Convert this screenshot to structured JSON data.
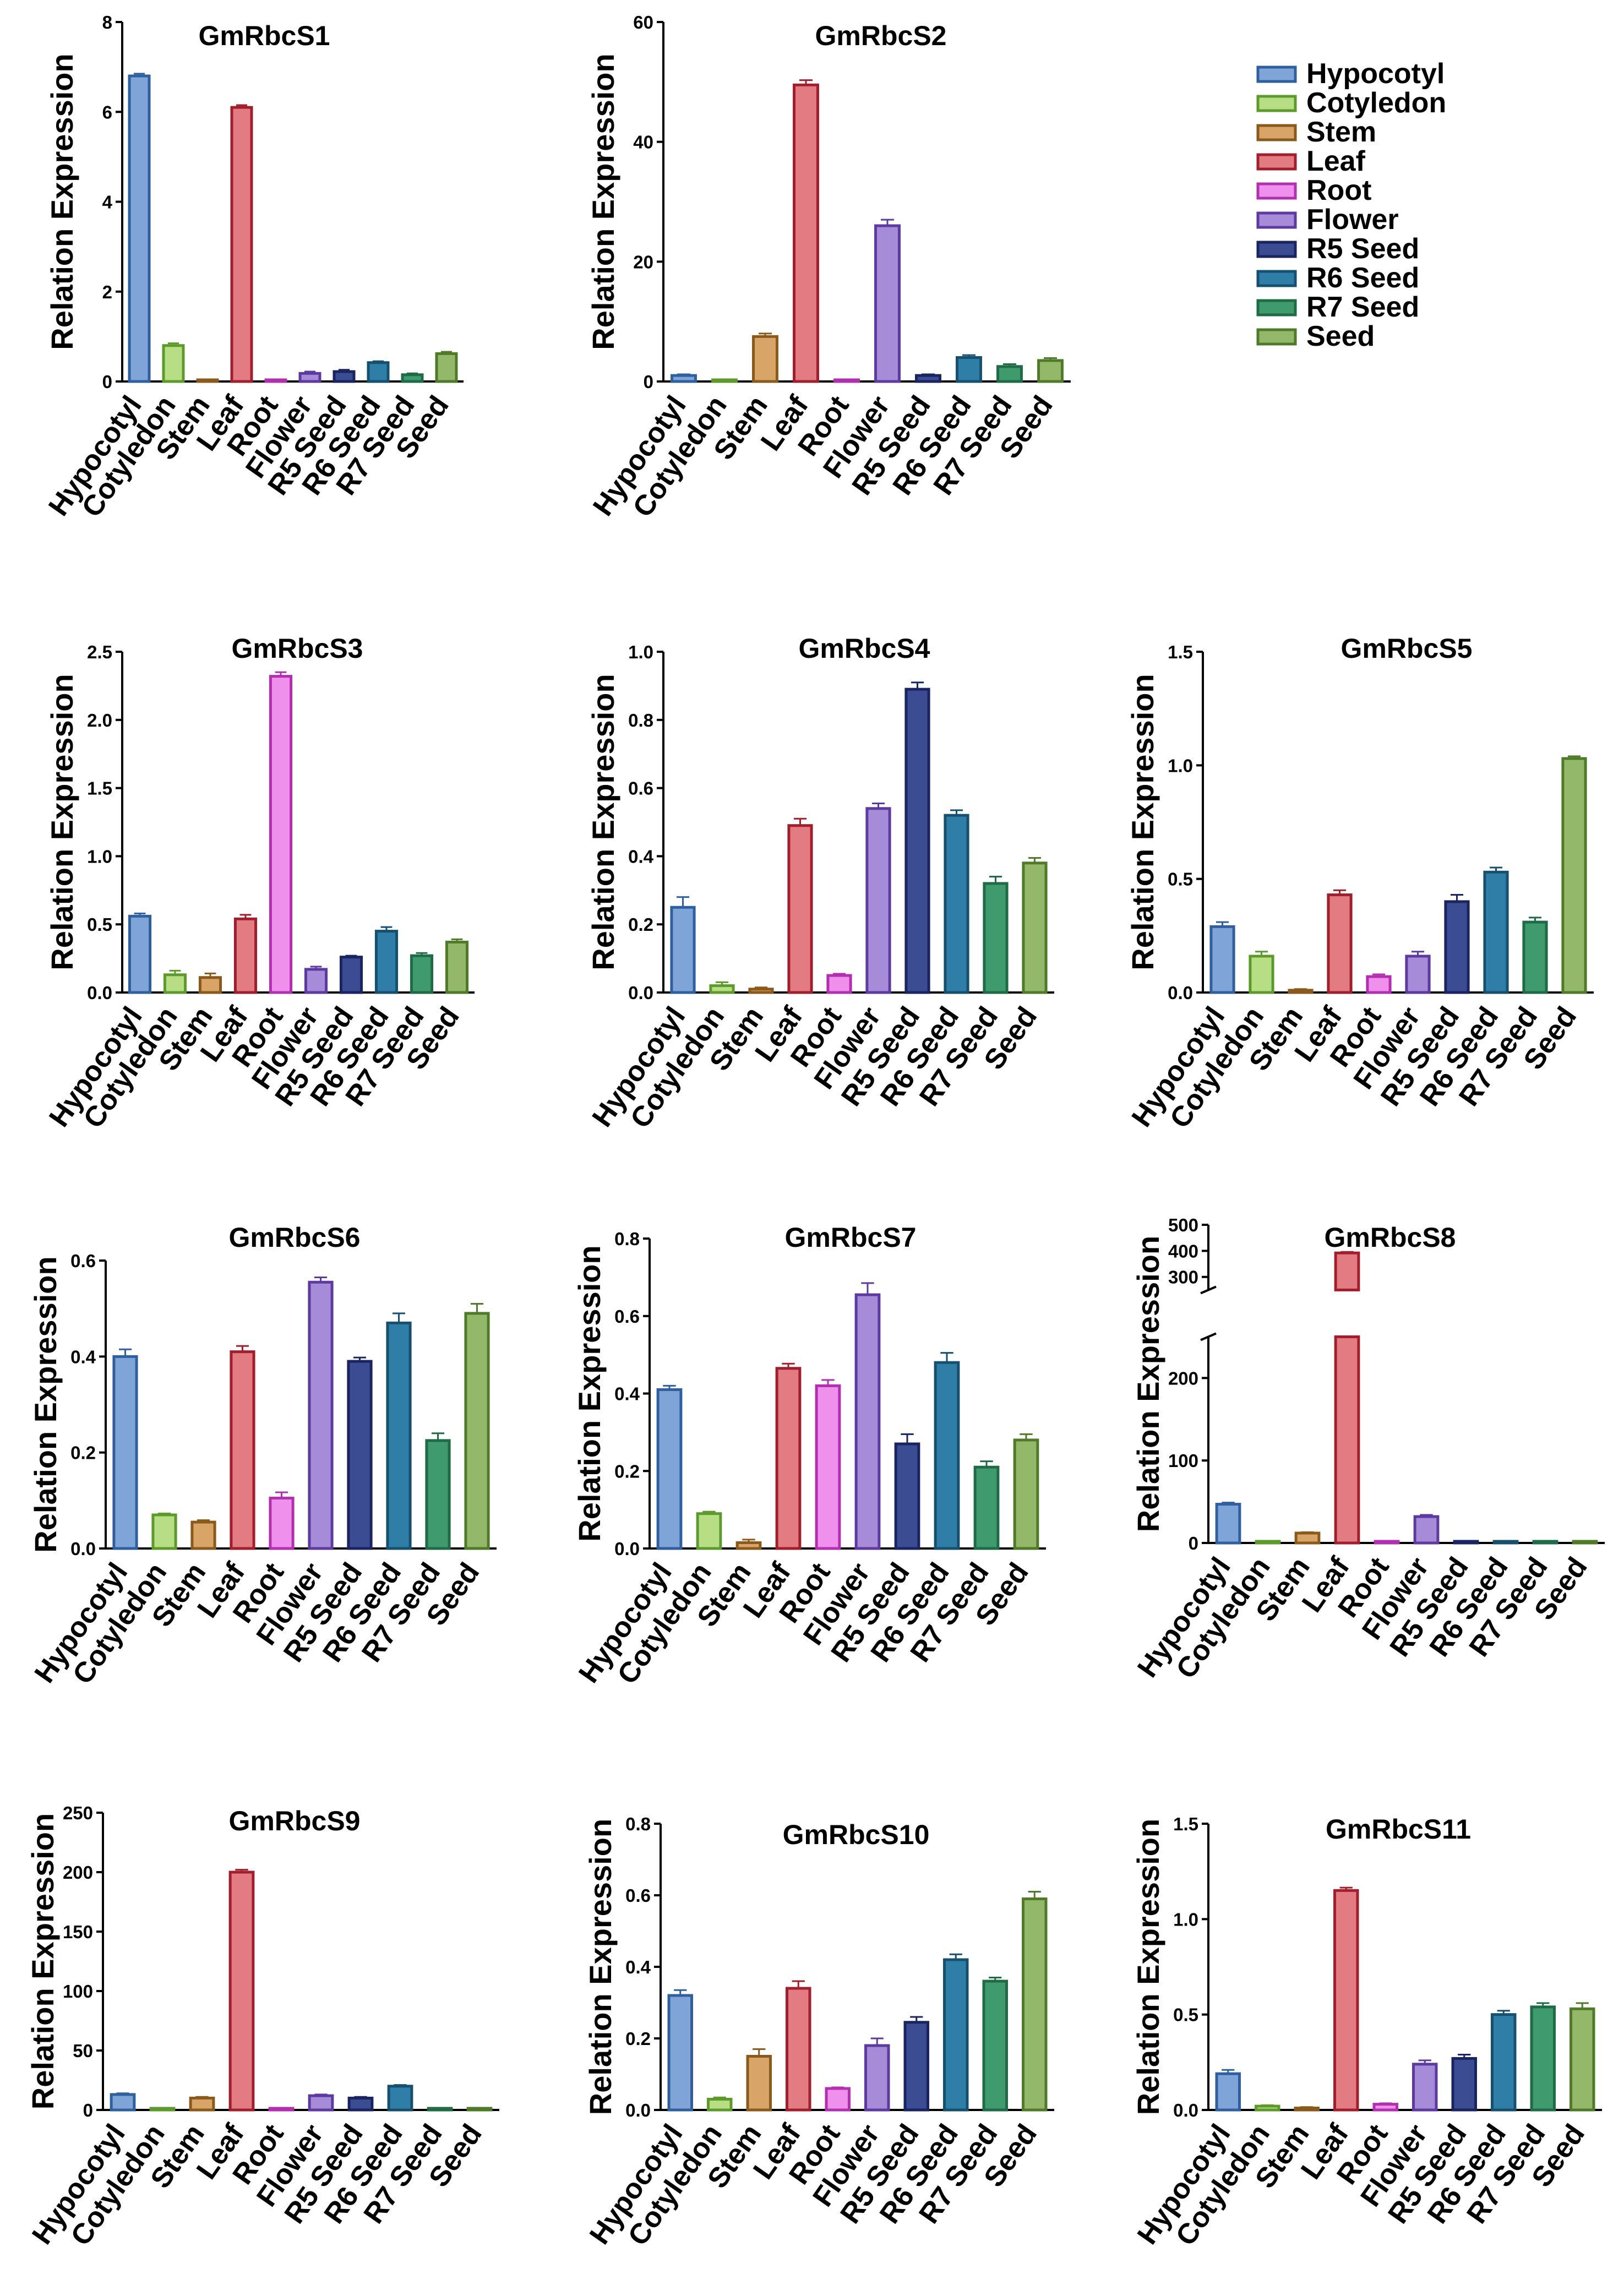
{
  "tissues": [
    "Hypocotyl",
    "Cotyledon",
    "Stem",
    "Leaf",
    "Root",
    "Flower",
    "R5 Seed",
    "R6 Seed",
    "R7 Seed",
    "Seed"
  ],
  "colors": [
    {
      "fill": "#7fa5d8",
      "stroke": "#2f5f9e"
    },
    {
      "fill": "#b8de85",
      "stroke": "#5c9a2c"
    },
    {
      "fill": "#d8a468",
      "stroke": "#8a5a1c"
    },
    {
      "fill": "#e37b82",
      "stroke": "#a11e2c"
    },
    {
      "fill": "#ee90ec",
      "stroke": "#b22fb0"
    },
    {
      "fill": "#a58bd8",
      "stroke": "#5c3aa0"
    },
    {
      "fill": "#3b4c93",
      "stroke": "#1a2460"
    },
    {
      "fill": "#2f7ea8",
      "stroke": "#17506e"
    },
    {
      "fill": "#3f9a6e",
      "stroke": "#1f6b45"
    },
    {
      "fill": "#93b86a",
      "stroke": "#4f7a28"
    }
  ],
  "ylabel": "Relation Expression",
  "chart_data": [
    {
      "type": "bar",
      "title": "GmRbcS1",
      "ylim": [
        0,
        8
      ],
      "yticks": [
        0,
        2,
        4,
        6,
        8
      ],
      "values": [
        6.8,
        0.8,
        0.02,
        6.1,
        0.02,
        0.18,
        0.22,
        0.42,
        0.15,
        0.62
      ],
      "errors": [
        0.05,
        0.05,
        0.01,
        0.05,
        0.01,
        0.04,
        0.04,
        0.03,
        0.03,
        0.04
      ]
    },
    {
      "type": "bar",
      "title": "GmRbcS2",
      "ylim": [
        0,
        60
      ],
      "yticks": [
        0,
        20,
        40,
        60
      ],
      "values": [
        1.0,
        0.05,
        7.5,
        49.5,
        0.1,
        26.0,
        1.0,
        4.0,
        2.5,
        3.5
      ],
      "errors": [
        0.2,
        0.02,
        0.5,
        0.8,
        0.05,
        1.0,
        0.2,
        0.4,
        0.4,
        0.4
      ]
    },
    {
      "type": "bar",
      "title": "GmRbcS3",
      "ylim": [
        0,
        2.5
      ],
      "yticks": [
        0.0,
        0.5,
        1.0,
        1.5,
        2.0,
        2.5
      ],
      "values": [
        0.56,
        0.13,
        0.11,
        0.54,
        2.32,
        0.17,
        0.26,
        0.45,
        0.27,
        0.37
      ],
      "errors": [
        0.02,
        0.03,
        0.03,
        0.03,
        0.03,
        0.02,
        0.01,
        0.03,
        0.02,
        0.02
      ]
    },
    {
      "type": "bar",
      "title": "GmRbcS4",
      "ylim": [
        0,
        1.0
      ],
      "yticks": [
        0.0,
        0.2,
        0.4,
        0.6,
        0.8,
        1.0
      ],
      "values": [
        0.25,
        0.02,
        0.01,
        0.49,
        0.05,
        0.54,
        0.89,
        0.52,
        0.32,
        0.38
      ],
      "errors": [
        0.03,
        0.01,
        0.005,
        0.02,
        0.005,
        0.015,
        0.02,
        0.015,
        0.02,
        0.015
      ]
    },
    {
      "type": "bar",
      "title": "GmRbcS5",
      "ylim": [
        0,
        1.5
      ],
      "yticks": [
        0.0,
        0.5,
        1.0,
        1.5
      ],
      "values": [
        0.29,
        0.16,
        0.01,
        0.43,
        0.07,
        0.16,
        0.4,
        0.53,
        0.31,
        1.03
      ],
      "errors": [
        0.02,
        0.02,
        0.005,
        0.02,
        0.01,
        0.02,
        0.03,
        0.02,
        0.02,
        0.01
      ]
    },
    {
      "type": "bar",
      "title": "GmRbcS6",
      "ylim": [
        0,
        0.6
      ],
      "yticks": [
        0.0,
        0.2,
        0.4,
        0.6
      ],
      "values": [
        0.4,
        0.07,
        0.055,
        0.41,
        0.105,
        0.555,
        0.39,
        0.47,
        0.225,
        0.49
      ],
      "errors": [
        0.015,
        0.003,
        0.004,
        0.012,
        0.012,
        0.01,
        0.008,
        0.02,
        0.015,
        0.02
      ]
    },
    {
      "type": "bar",
      "title": "GmRbcS7",
      "ylim": [
        0,
        0.8
      ],
      "yticks": [
        0.0,
        0.2,
        0.4,
        0.6,
        0.8
      ],
      "values": [
        0.41,
        0.09,
        0.015,
        0.465,
        0.42,
        0.655,
        0.27,
        0.48,
        0.21,
        0.28
      ],
      "errors": [
        0.01,
        0.005,
        0.008,
        0.012,
        0.015,
        0.03,
        0.025,
        0.025,
        0.015,
        0.015
      ]
    },
    {
      "type": "bar",
      "title": "GmRbcS8",
      "broken_axis": true,
      "lower_range": [
        0,
        250
      ],
      "upper_range": [
        250,
        500
      ],
      "lower_ticks": [
        0,
        100,
        200
      ],
      "upper_ticks": [
        300,
        400,
        500
      ],
      "values": [
        47,
        0.5,
        12,
        392,
        0.5,
        32,
        0.5,
        0.5,
        0.5,
        0.5
      ],
      "errors": [
        2,
        0.1,
        1,
        4,
        0.1,
        2,
        0.1,
        0.1,
        0.1,
        0.1
      ]
    },
    {
      "type": "bar",
      "title": "GmRbcS9",
      "ylim": [
        0,
        250
      ],
      "yticks": [
        0,
        50,
        100,
        150,
        200,
        250
      ],
      "values": [
        13,
        0.3,
        10,
        200,
        0.3,
        12,
        10,
        20,
        0.3,
        1.0
      ],
      "errors": [
        1,
        0.1,
        1,
        2,
        0.1,
        1,
        1,
        1,
        0.1,
        0.2
      ]
    },
    {
      "type": "bar",
      "title": "GmRbcS10",
      "ylim": [
        0,
        0.8
      ],
      "yticks": [
        0.0,
        0.2,
        0.4,
        0.6,
        0.8
      ],
      "values": [
        0.32,
        0.03,
        0.15,
        0.34,
        0.06,
        0.18,
        0.245,
        0.42,
        0.36,
        0.59
      ],
      "errors": [
        0.015,
        0.005,
        0.02,
        0.02,
        0.003,
        0.02,
        0.015,
        0.015,
        0.01,
        0.02
      ]
    },
    {
      "type": "bar",
      "title": "GmRbcS11",
      "ylim": [
        0,
        1.5
      ],
      "yticks": [
        0.0,
        0.5,
        1.0,
        1.5
      ],
      "values": [
        0.19,
        0.02,
        0.01,
        1.15,
        0.03,
        0.24,
        0.27,
        0.5,
        0.54,
        0.53
      ],
      "errors": [
        0.02,
        0.005,
        0.005,
        0.015,
        0.005,
        0.02,
        0.02,
        0.02,
        0.02,
        0.03
      ]
    }
  ]
}
